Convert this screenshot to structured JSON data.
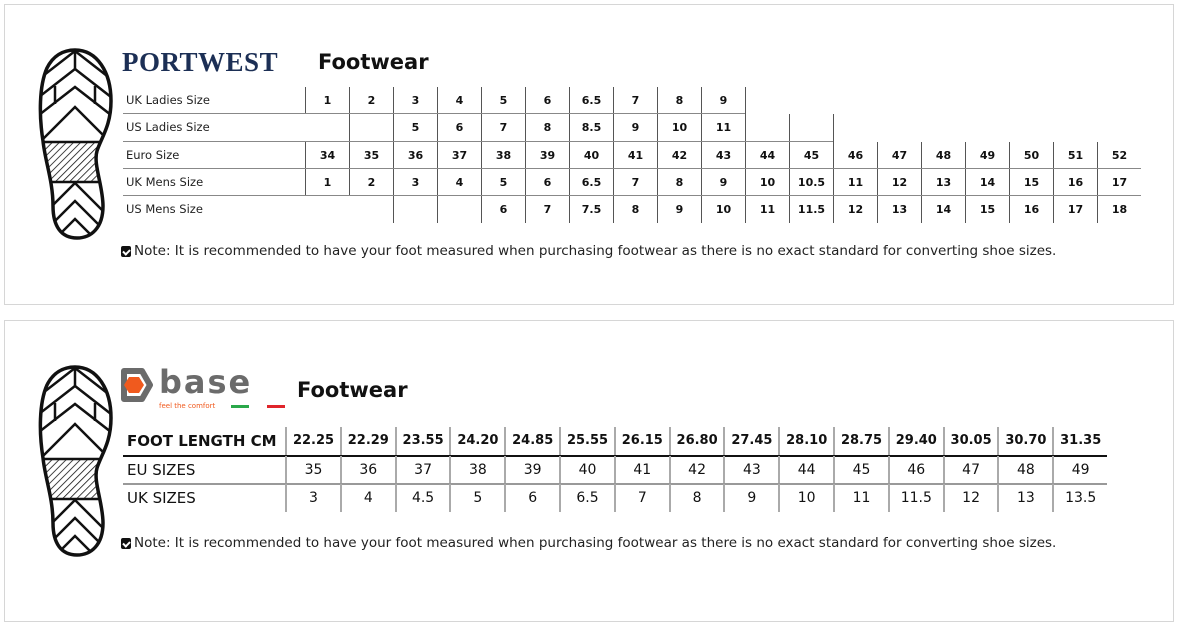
{
  "portwest": {
    "brand": "PORTWEST",
    "title": "Footwear",
    "rows": [
      {
        "label": "UK Ladies Size",
        "values": [
          "1",
          "2",
          "3",
          "4",
          "5",
          "6",
          "6.5",
          "7",
          "8",
          "9",
          "",
          "",
          "",
          "",
          "",
          "",
          "",
          "",
          ""
        ]
      },
      {
        "label": "US Ladies Size",
        "values": [
          "",
          "",
          "5",
          "6",
          "7",
          "8",
          "8.5",
          "9",
          "10",
          "11",
          "",
          "",
          "",
          "",
          "",
          "",
          "",
          "",
          ""
        ]
      },
      {
        "label": "Euro Size",
        "values": [
          "34",
          "35",
          "36",
          "37",
          "38",
          "39",
          "40",
          "41",
          "42",
          "43",
          "44",
          "45",
          "46",
          "47",
          "48",
          "49",
          "50",
          "51",
          "52"
        ]
      },
      {
        "label": "UK Mens Size",
        "values": [
          "1",
          "2",
          "3",
          "4",
          "5",
          "6",
          "6.5",
          "7",
          "8",
          "9",
          "10",
          "10.5",
          "11",
          "12",
          "13",
          "14",
          "15",
          "16",
          "17"
        ]
      },
      {
        "label": "US Mens Size",
        "values": [
          "",
          "",
          "",
          "",
          "6",
          "7",
          "7.5",
          "8",
          "9",
          "10",
          "11",
          "11.5",
          "12",
          "13",
          "14",
          "15",
          "16",
          "17",
          "18"
        ]
      }
    ],
    "note": "Note: It is recommended to have your foot measured when purchasing footwear as there is no exact standard for converting shoe sizes."
  },
  "base": {
    "brand": "base",
    "tagline": "feel the comfort",
    "title": "Footwear",
    "colors": {
      "orange": "#f05a1e",
      "grey": "#6b6b6b",
      "green": "#2aa84a",
      "red": "#e0252b"
    },
    "rows": [
      {
        "label": "FOOT LENGTH CM",
        "values": [
          "22.25",
          "22.29",
          "23.55",
          "24.20",
          "24.85",
          "25.55",
          "26.15",
          "26.80",
          "27.45",
          "28.10",
          "28.75",
          "29.40",
          "30.05",
          "30.70",
          "31.35"
        ]
      },
      {
        "label": "EU SIZES",
        "values": [
          "35",
          "36",
          "37",
          "38",
          "39",
          "40",
          "41",
          "42",
          "43",
          "44",
          "45",
          "46",
          "47",
          "48",
          "49"
        ]
      },
      {
        "label": "UK SIZES",
        "values": [
          "3",
          "4",
          "4.5",
          "5",
          "6",
          "6.5",
          "7",
          "8",
          "9",
          "10",
          "11",
          "11.5",
          "12",
          "13",
          "13.5"
        ]
      }
    ],
    "note": "Note: It is recommended to have your foot measured when purchasing footwear as there is no exact standard for converting shoe sizes."
  }
}
